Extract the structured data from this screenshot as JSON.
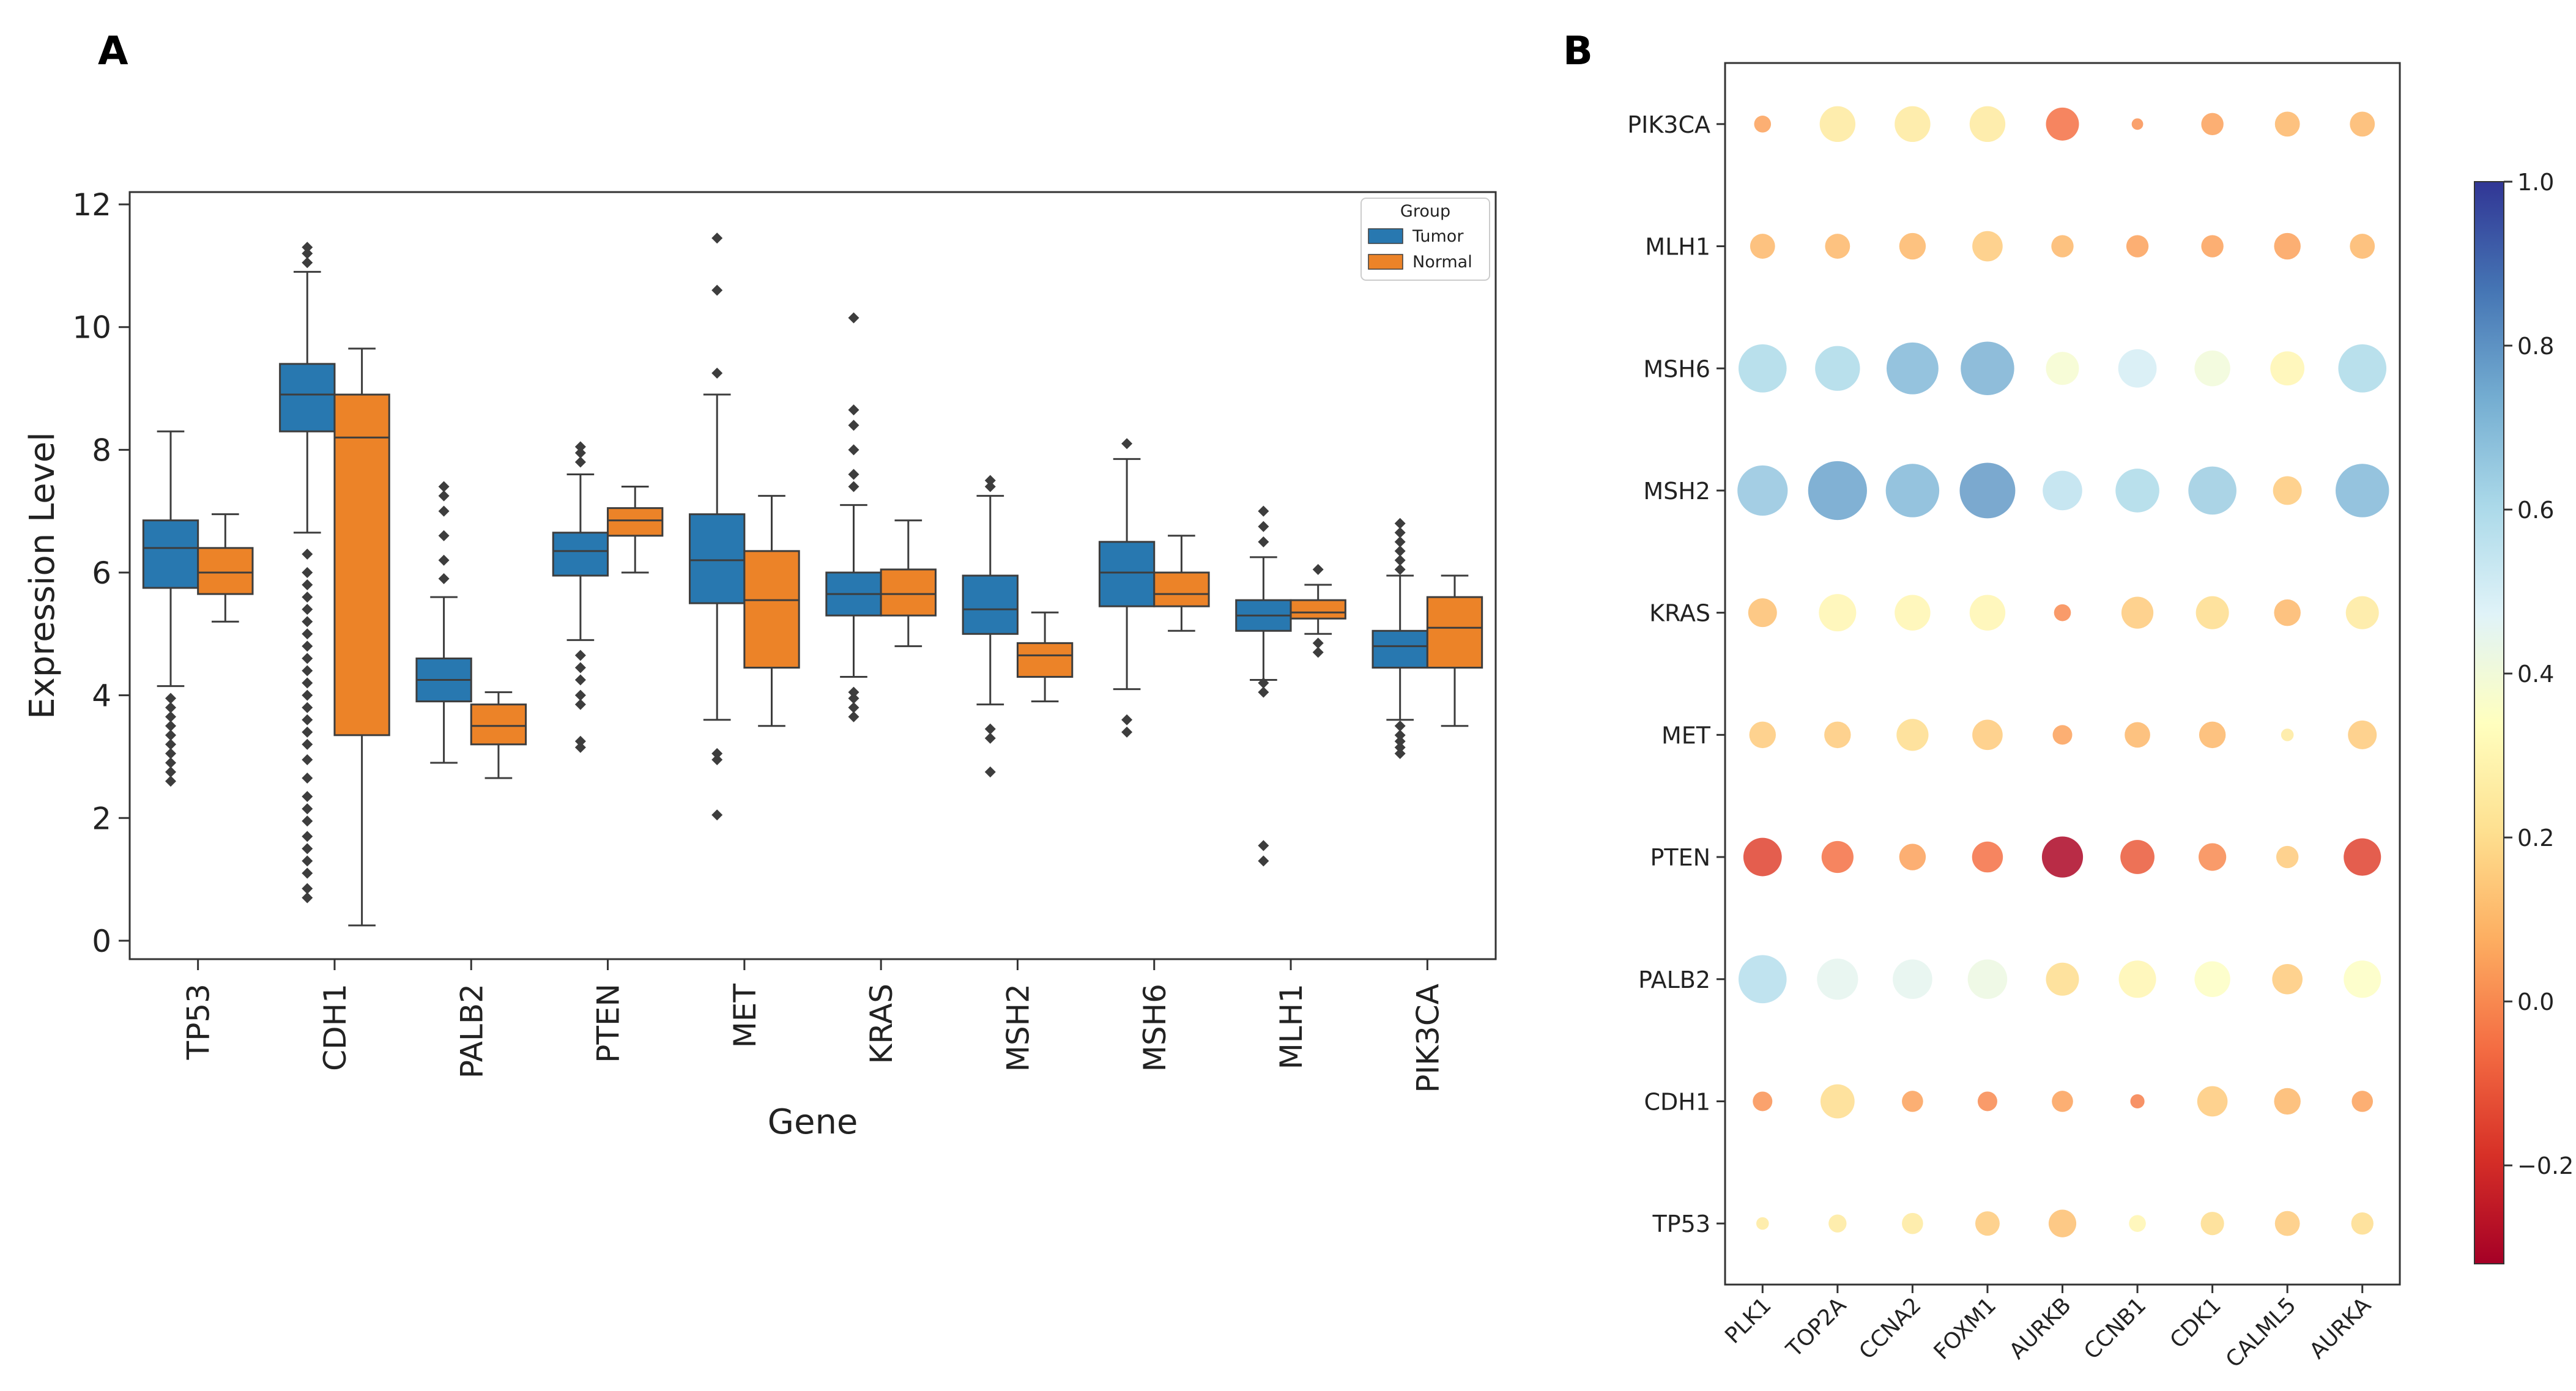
{
  "panel_a_label": "A",
  "panel_b_label": "B",
  "chart_data": [
    {
      "type": "boxplot",
      "panel": "A",
      "xlabel": "Gene",
      "ylabel": "Expression Level",
      "ylim": [
        -0.3,
        12.2
      ],
      "yticks": [
        0,
        2,
        4,
        6,
        8,
        10,
        12
      ],
      "categories": [
        "TP53",
        "CDH1",
        "PALB2",
        "PTEN",
        "MET",
        "KRAS",
        "MSH2",
        "MSH6",
        "MLH1",
        "PIK3CA"
      ],
      "legend": {
        "title": "Group",
        "position": "top-right",
        "entries": [
          "Tumor",
          "Normal"
        ]
      },
      "colors": {
        "Tumor": "#2878b0",
        "Normal": "#ec8328",
        "median": "#3d3d3d"
      },
      "series": [
        {
          "name": "Tumor",
          "boxes": [
            {
              "whislo": 4.15,
              "q1": 5.75,
              "med": 6.4,
              "q3": 6.85,
              "whishi": 8.3,
              "fliers": [
                2.6,
                2.75,
                2.9,
                3.05,
                3.2,
                3.35,
                3.5,
                3.65,
                3.8,
                3.95
              ]
            },
            {
              "whislo": 6.65,
              "q1": 8.3,
              "med": 8.9,
              "q3": 9.4,
              "whishi": 10.9,
              "fliers": [
                0.7,
                0.85,
                1.1,
                1.3,
                1.5,
                1.7,
                1.95,
                2.15,
                2.35,
                2.65,
                2.95,
                3.2,
                3.4,
                3.6,
                3.8,
                4.0,
                4.2,
                4.4,
                4.6,
                4.8,
                5.0,
                5.2,
                5.4,
                5.6,
                5.8,
                6.0,
                6.3,
                11.05,
                11.2,
                11.3
              ]
            },
            {
              "whislo": 2.9,
              "q1": 3.9,
              "med": 4.25,
              "q3": 4.6,
              "whishi": 5.6,
              "fliers": [
                5.9,
                6.2,
                6.6,
                7.0,
                7.25,
                7.4
              ]
            },
            {
              "whislo": 4.9,
              "q1": 5.95,
              "med": 6.35,
              "q3": 6.65,
              "whishi": 7.6,
              "fliers": [
                3.15,
                3.25,
                3.85,
                4.0,
                4.25,
                4.45,
                4.65,
                7.8,
                7.95,
                8.05
              ]
            },
            {
              "whislo": 3.6,
              "q1": 5.5,
              "med": 6.2,
              "q3": 6.95,
              "whishi": 8.9,
              "fliers": [
                2.05,
                2.95,
                3.05,
                9.25,
                10.6,
                11.45
              ]
            },
            {
              "whislo": 4.3,
              "q1": 5.3,
              "med": 5.65,
              "q3": 6.0,
              "whishi": 7.1,
              "fliers": [
                3.65,
                3.8,
                3.95,
                4.05,
                7.4,
                7.6,
                8.0,
                8.4,
                8.65,
                10.15
              ]
            },
            {
              "whislo": 3.85,
              "q1": 5.0,
              "med": 5.4,
              "q3": 5.95,
              "whishi": 7.25,
              "fliers": [
                2.75,
                3.3,
                3.45,
                7.4,
                7.5
              ]
            },
            {
              "whislo": 4.1,
              "q1": 5.45,
              "med": 6.0,
              "q3": 6.5,
              "whishi": 7.85,
              "fliers": [
                3.4,
                3.6,
                8.1
              ]
            },
            {
              "whislo": 4.25,
              "q1": 5.05,
              "med": 5.3,
              "q3": 5.55,
              "whishi": 6.25,
              "fliers": [
                1.3,
                1.55,
                4.05,
                4.2,
                6.5,
                6.75,
                7.0
              ]
            },
            {
              "whislo": 3.6,
              "q1": 4.45,
              "med": 4.8,
              "q3": 5.05,
              "whishi": 5.95,
              "fliers": [
                3.05,
                3.15,
                3.25,
                3.35,
                3.5,
                6.05,
                6.2,
                6.35,
                6.5,
                6.65,
                6.8
              ]
            }
          ]
        },
        {
          "name": "Normal",
          "boxes": [
            {
              "whislo": 5.2,
              "q1": 5.65,
              "med": 6.0,
              "q3": 6.4,
              "whishi": 6.95,
              "fliers": []
            },
            {
              "whislo": 0.25,
              "q1": 3.35,
              "med": 8.2,
              "q3": 8.9,
              "whishi": 9.65,
              "fliers": []
            },
            {
              "whislo": 2.65,
              "q1": 3.2,
              "med": 3.5,
              "q3": 3.85,
              "whishi": 4.05,
              "fliers": []
            },
            {
              "whislo": 6.0,
              "q1": 6.6,
              "med": 6.85,
              "q3": 7.05,
              "whishi": 7.4,
              "fliers": []
            },
            {
              "whislo": 3.5,
              "q1": 4.45,
              "med": 5.55,
              "q3": 6.35,
              "whishi": 7.25,
              "fliers": []
            },
            {
              "whislo": 4.8,
              "q1": 5.3,
              "med": 5.65,
              "q3": 6.05,
              "whishi": 6.85,
              "fliers": []
            },
            {
              "whislo": 3.9,
              "q1": 4.3,
              "med": 4.65,
              "q3": 4.85,
              "whishi": 5.35,
              "fliers": []
            },
            {
              "whislo": 5.05,
              "q1": 5.45,
              "med": 5.65,
              "q3": 6.0,
              "whishi": 6.6,
              "fliers": []
            },
            {
              "whislo": 5.0,
              "q1": 5.25,
              "med": 5.35,
              "q3": 5.55,
              "whishi": 5.8,
              "fliers": [
                4.7,
                4.85,
                6.05
              ]
            },
            {
              "whislo": 3.5,
              "q1": 4.45,
              "med": 5.1,
              "q3": 5.6,
              "whishi": 5.95,
              "fliers": []
            }
          ]
        }
      ]
    },
    {
      "type": "dot_matrix",
      "panel": "B",
      "x_categories": [
        "PLK1",
        "TOP2A",
        "CCNA2",
        "FOXM1",
        "AURKB",
        "CCNB1",
        "CDK1",
        "CALML5",
        "AURKA"
      ],
      "y_categories": [
        "PIK3CA",
        "MLH1",
        "MSH6",
        "MSH2",
        "KRAS",
        "MET",
        "PTEN",
        "PALB2",
        "CDH1",
        "TP53"
      ],
      "values": [
        [
          0.05,
          0.25,
          0.25,
          0.25,
          -0.05,
          0.02,
          0.05,
          0.1,
          0.1
        ],
        [
          0.1,
          0.1,
          0.1,
          0.15,
          0.1,
          0.05,
          0.05,
          0.05,
          0.1
        ],
        [
          0.6,
          0.6,
          0.7,
          0.72,
          0.38,
          0.5,
          0.4,
          0.3,
          0.6
        ],
        [
          0.66,
          0.76,
          0.7,
          0.78,
          0.56,
          0.6,
          0.64,
          0.15,
          0.7
        ],
        [
          0.12,
          0.3,
          0.3,
          0.3,
          0.0,
          0.15,
          0.2,
          0.1,
          0.25
        ],
        [
          0.15,
          0.15,
          0.2,
          0.15,
          0.05,
          0.1,
          0.1,
          0.25,
          0.15
        ],
        [
          -0.15,
          -0.05,
          0.05,
          -0.05,
          -0.3,
          -0.1,
          0.0,
          0.15,
          -0.15
        ],
        [
          0.58,
          0.45,
          0.45,
          0.42,
          0.2,
          0.3,
          0.35,
          0.15,
          0.35
        ],
        [
          0.02,
          0.2,
          0.05,
          0.0,
          0.05,
          -0.02,
          0.15,
          0.1,
          0.05
        ],
        [
          0.25,
          0.25,
          0.25,
          0.15,
          0.12,
          0.3,
          0.2,
          0.15,
          0.2
        ]
      ],
      "sizes": [
        [
          0.2,
          0.55,
          0.55,
          0.55,
          0.5,
          0.1,
          0.3,
          0.35,
          0.35
        ],
        [
          0.35,
          0.35,
          0.38,
          0.45,
          0.3,
          0.3,
          0.3,
          0.38,
          0.35
        ],
        [
          0.78,
          0.72,
          0.85,
          0.88,
          0.5,
          0.6,
          0.55,
          0.52,
          0.78
        ],
        [
          0.82,
          0.98,
          0.88,
          0.92,
          0.62,
          0.7,
          0.78,
          0.42,
          0.88
        ],
        [
          0.42,
          0.58,
          0.55,
          0.55,
          0.2,
          0.48,
          0.5,
          0.38,
          0.5
        ],
        [
          0.38,
          0.38,
          0.48,
          0.45,
          0.25,
          0.36,
          0.38,
          0.12,
          0.42
        ],
        [
          0.6,
          0.48,
          0.38,
          0.46,
          0.65,
          0.52,
          0.4,
          0.3,
          0.58
        ],
        [
          0.78,
          0.65,
          0.62,
          0.62,
          0.5,
          0.58,
          0.55,
          0.45,
          0.58
        ],
        [
          0.25,
          0.52,
          0.28,
          0.25,
          0.28,
          0.15,
          0.45,
          0.38,
          0.28
        ],
        [
          0.12,
          0.22,
          0.28,
          0.34,
          0.4,
          0.2,
          0.32,
          0.35,
          0.3
        ]
      ],
      "colorbar": {
        "range": [
          -0.32,
          1.0
        ],
        "ticks": [
          1.0,
          0.8,
          0.6,
          0.4,
          0.2,
          0.0,
          -0.2
        ],
        "tick_labels": [
          "1.0",
          "0.8",
          "0.6",
          "0.4",
          "0.2",
          "0.0",
          "−0.2"
        ],
        "colormap": "RdYlBu",
        "colors": [
          "#a50026",
          "#d73027",
          "#f46d43",
          "#fdae61",
          "#fee090",
          "#ffffbf",
          "#e0f3f8",
          "#abd9e9",
          "#74add1",
          "#4575b4",
          "#313695"
        ]
      }
    }
  ]
}
